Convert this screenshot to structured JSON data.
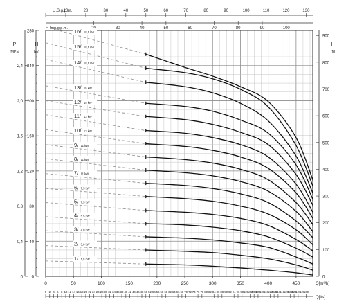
{
  "chart_data": {
    "type": "line",
    "title": "",
    "axes": {
      "bottom": {
        "label": "Q[m³/h]",
        "ticks": [
          0,
          50,
          100,
          150,
          200,
          250,
          300,
          350,
          400,
          450
        ],
        "range": [
          0,
          480
        ]
      },
      "bottom2": {
        "label": "Q[l/s]",
        "ticks": [
          0,
          2,
          4,
          6,
          8,
          10,
          12,
          14,
          16,
          18,
          20,
          22,
          24,
          26,
          28,
          30,
          32,
          34,
          36,
          38,
          40,
          42,
          44,
          46,
          48,
          50,
          52,
          54,
          56,
          58,
          60,
          62,
          64,
          66,
          68,
          70,
          72,
          74,
          76,
          78,
          80,
          82,
          84,
          86,
          88,
          90,
          92,
          94,
          96,
          98,
          100,
          102,
          104,
          106,
          108,
          110,
          112,
          114,
          116,
          118,
          120,
          122,
          124,
          126,
          128,
          130
        ],
        "range": [
          0,
          133.3
        ]
      },
      "top_usgpm": {
        "label": "U.S.g.p.m.",
        "ticks": [
          0,
          10,
          20,
          30,
          40,
          50,
          60,
          70,
          80,
          90,
          100,
          110,
          120,
          130
        ],
        "range": [
          0,
          133.3
        ]
      },
      "top_impgpm": {
        "label": "Imp.g.p.m.",
        "ticks": [
          20,
          30,
          40,
          50,
          60,
          70,
          80,
          90,
          100
        ],
        "range": [
          0,
          111.0
        ]
      },
      "left_m": {
        "label": "H",
        "unit": "[m]",
        "ticks": [
          0,
          40,
          80,
          120,
          160,
          200,
          240,
          280
        ],
        "range": [
          0,
          280
        ]
      },
      "left_mpa": {
        "label": "P",
        "unit": "[MPa]",
        "ticks": [
          "0",
          "0,4",
          "0,8",
          "1,2",
          "1,6",
          "2,0",
          "2,4"
        ],
        "range": [
          0,
          2.8
        ]
      },
      "right_ft": {
        "label": "H",
        "unit": "[ft]",
        "ticks": [
          0,
          100,
          200,
          300,
          400,
          500,
          600,
          700,
          800,
          900
        ],
        "range": [
          0,
          918.6
        ]
      }
    },
    "grid": true,
    "operating_range_q": [
      180,
      480
    ],
    "series": [
      {
        "name": "1/",
        "power": "1,5 kW",
        "head_at_0": 17.5,
        "q": [
          180,
          250,
          300,
          350,
          400,
          450,
          480
        ],
        "h": [
          14,
          13,
          11.5,
          9.5,
          7,
          4,
          1.5
        ]
      },
      {
        "name": "2/",
        "power": "3,0 kW",
        "head_at_0": 35,
        "q": [
          180,
          250,
          300,
          350,
          400,
          450,
          480
        ],
        "h": [
          30,
          28.5,
          27,
          24,
          20,
          13,
          7
        ]
      },
      {
        "name": "3/",
        "power": "4,0 kW",
        "head_at_0": 52,
        "q": [
          180,
          250,
          300,
          350,
          400,
          450,
          480
        ],
        "h": [
          45,
          43.5,
          41.5,
          38,
          33,
          22,
          14
        ]
      },
      {
        "name": "4/",
        "power": "5,5 kW",
        "head_at_0": 68,
        "q": [
          180,
          250,
          300,
          350,
          400,
          450,
          480
        ],
        "h": [
          60,
          58.5,
          56,
          52,
          45,
          32,
          22
        ]
      },
      {
        "name": "5/",
        "power": "7,5 kW",
        "head_at_0": 84,
        "q": [
          180,
          250,
          300,
          350,
          400,
          450,
          480
        ],
        "h": [
          75,
          73,
          70.5,
          66,
          58,
          42,
          29
        ]
      },
      {
        "name": "6/",
        "power": "7,5 kW",
        "head_at_0": 100,
        "q": [
          180,
          250,
          300,
          350,
          400,
          450,
          480
        ],
        "h": [
          91,
          88.5,
          85.5,
          80,
          71,
          53,
          36
        ]
      },
      {
        "name": "7/",
        "power": "11 kW",
        "head_at_0": 117,
        "q": [
          180,
          250,
          300,
          350,
          400,
          450,
          480
        ],
        "h": [
          106,
          103.5,
          100,
          94,
          84,
          63,
          44
        ]
      },
      {
        "name": "8/",
        "power": "11 kW",
        "head_at_0": 134,
        "q": [
          180,
          250,
          300,
          350,
          400,
          450,
          480
        ],
        "h": [
          121,
          118,
          114.5,
          108,
          97,
          74,
          51
        ]
      },
      {
        "name": "9/",
        "power": "11 kW",
        "head_at_0": 150,
        "q": [
          180,
          250,
          300,
          350,
          400,
          450,
          480
        ],
        "h": [
          136,
          133,
          129,
          122,
          110,
          84,
          59
        ]
      },
      {
        "name": "10/",
        "power": "13 kW",
        "head_at_0": 167,
        "q": [
          180,
          250,
          300,
          350,
          400,
          450,
          480
        ],
        "h": [
          151,
          148,
          143.5,
          136,
          123,
          95,
          66
        ]
      },
      {
        "name": "11/",
        "power": "13 kW",
        "head_at_0": 184,
        "q": [
          180,
          250,
          300,
          350,
          400,
          450,
          480
        ],
        "h": [
          166,
          163,
          158,
          150,
          136,
          105,
          73
        ]
      },
      {
        "name": "12/",
        "power": "15 kW",
        "head_at_0": 200,
        "q": [
          180,
          250,
          300,
          350,
          400,
          450,
          480
        ],
        "h": [
          182,
          178.5,
          173,
          164,
          150,
          116,
          81
        ]
      },
      {
        "name": "13/",
        "power": "15 kW",
        "head_at_0": 217,
        "q": [
          180,
          250,
          300,
          350,
          400,
          450,
          480
        ],
        "h": [
          197,
          193.5,
          188,
          178,
          163,
          127,
          88
        ]
      },
      {
        "name": "14/",
        "power": "18,5 kW",
        "head_at_0": 247,
        "q": [
          180,
          250,
          300,
          350,
          400,
          450,
          480
        ],
        "h": [
          221,
          216,
          209,
          197,
          177,
          137,
          95
        ]
      },
      {
        "name": "15/",
        "power": "18,5 kW",
        "head_at_0": 266,
        "q": [
          180,
          250,
          300,
          350,
          400,
          450,
          480
        ],
        "h": [
          237,
          232,
          225,
          213,
          193,
          149,
          103
        ]
      },
      {
        "name": "16/",
        "power": "18,5 kW",
        "head_at_0": 284,
        "q": [
          180,
          250,
          300,
          350,
          400,
          450,
          480
        ],
        "h": [
          253,
          238,
          228,
          216,
          199,
          158,
          110
        ]
      }
    ]
  }
}
